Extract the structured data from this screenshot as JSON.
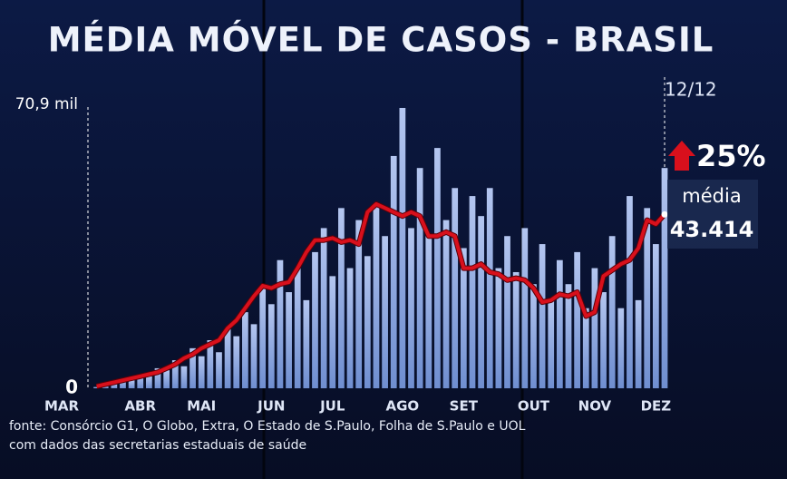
{
  "chart_data": {
    "type": "bar_line",
    "title": "MÉDIA MÓVEL DE CASOS - BRASIL",
    "categories": [
      "MAR",
      null,
      null,
      null,
      null,
      null,
      null,
      null,
      null,
      "ABR",
      null,
      null,
      null,
      null,
      null,
      null,
      "MAI",
      null,
      null,
      null,
      null,
      null,
      null,
      null,
      "JUN",
      null,
      null,
      null,
      null,
      null,
      null,
      "JUL",
      null,
      null,
      null,
      null,
      null,
      null,
      null,
      "AGO",
      null,
      null,
      null,
      null,
      null,
      null,
      "SET",
      null,
      null,
      null,
      null,
      null,
      null,
      null,
      "OUT",
      null,
      null,
      null,
      null,
      null,
      null,
      "NOV",
      null,
      null,
      null,
      null,
      null,
      null,
      "DEZ",
      null
    ],
    "series": [
      {
        "kind": "bar",
        "color": "#9db3e6",
        "values": [
          null,
          null,
          null,
          null,
          0.3,
          0.8,
          1.2,
          2.5,
          2,
          3.5,
          3,
          5,
          4.5,
          7,
          5.5,
          10,
          8,
          12,
          9,
          15,
          13,
          19,
          16,
          25,
          21,
          32,
          24,
          30,
          22,
          34,
          40,
          28,
          45,
          30,
          42,
          33,
          46,
          38,
          58,
          70,
          40,
          55,
          38,
          60,
          42,
          50,
          35,
          48,
          43,
          50,
          30,
          38,
          29,
          40,
          26,
          36,
          22,
          32,
          26,
          34,
          20,
          30,
          24,
          38,
          20,
          48,
          22,
          45,
          36,
          55
        ]
      },
      {
        "kind": "line",
        "color": "#d8101c",
        "values": [
          null,
          null,
          null,
          null,
          0.5,
          1,
          1.5,
          2,
          2.5,
          3,
          3.5,
          4,
          5,
          6,
          7.5,
          8.5,
          10,
          11,
          12,
          15,
          17,
          20,
          23,
          25.6,
          25,
          26,
          26.5,
          30,
          34,
          37,
          37,
          37.5,
          36.5,
          37,
          36,
          44,
          46,
          45,
          44,
          43,
          44,
          43,
          38,
          38,
          39,
          38,
          30,
          30,
          31,
          29,
          28.5,
          27,
          27.5,
          27,
          25,
          21.5,
          22,
          23.5,
          23,
          24,
          18,
          19,
          28,
          29.5,
          31,
          32,
          35,
          42,
          41,
          43.414
        ],
        "value_labels": [
          null,
          null,
          null,
          null,
          null,
          null,
          null,
          null,
          null,
          null,
          null,
          null,
          null,
          null,
          null,
          null,
          null,
          null,
          null,
          null,
          null,
          null,
          null,
          null,
          null,
          null,
          null,
          null,
          null,
          null,
          null,
          null,
          null,
          null,
          null,
          null,
          null,
          null,
          null,
          null,
          null,
          null,
          null,
          null,
          null,
          null,
          null,
          null,
          null,
          null,
          null,
          null,
          null,
          null,
          null,
          null,
          null,
          null,
          null,
          null,
          null,
          null,
          null,
          null,
          null,
          null,
          null,
          null,
          null,
          "43.414"
        ]
      }
    ],
    "ylim": [
      0,
      70.9
    ],
    "yticks": [
      0,
      {
        "value": 70.9,
        "label": "70,9 mil"
      }
    ],
    "end_date": "12/12",
    "change": {
      "value": 25,
      "label": "25%"
    },
    "avg_label": "média",
    "source": [
      "fonte: Consórcio G1, O Globo, Extra, O Estado de S.Paulo, Folha de S.Paulo e UOL",
      "com dados das secretarias estaduais de saúde"
    ]
  }
}
